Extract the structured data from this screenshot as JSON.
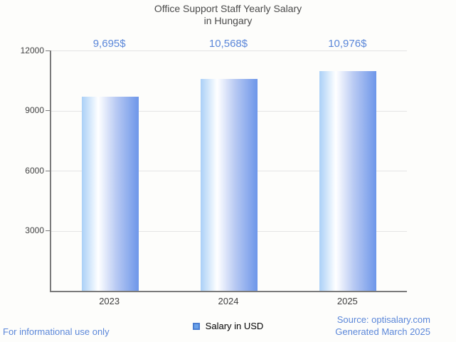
{
  "title": {
    "line1": "Office Support Staff Yearly Salary",
    "line2": "in Hungary"
  },
  "chart_data": {
    "type": "bar",
    "title": "Office Support Staff Yearly Salary in Hungary",
    "categories": [
      "2023",
      "2024",
      "2025"
    ],
    "values": [
      9695,
      10568,
      10976
    ],
    "value_labels": [
      "9,695$",
      "10,568$",
      "10,976$"
    ],
    "series": [
      {
        "name": "Salary in USD",
        "values": [
          9695,
          10568,
          10976
        ]
      }
    ],
    "xlabel": "",
    "ylabel": "",
    "ylim": [
      0,
      12000
    ],
    "yticks": [
      "12000",
      "9000",
      "6000",
      "3000"
    ],
    "grid": true,
    "legend_position": "bottom"
  },
  "legend": {
    "label": "Salary in USD"
  },
  "footer": {
    "left": "For informational use only",
    "source": "Source: optisalary.com",
    "generated": "Generated March 2025"
  },
  "colors": {
    "accent_blue": "#5b87d9",
    "bar_gradient_left": "#aad0f7",
    "bar_gradient_right": "#6d96e9",
    "legend_fill": "#6aa2e9",
    "legend_border": "#4a7dd0",
    "background": "#fdfdfb"
  }
}
